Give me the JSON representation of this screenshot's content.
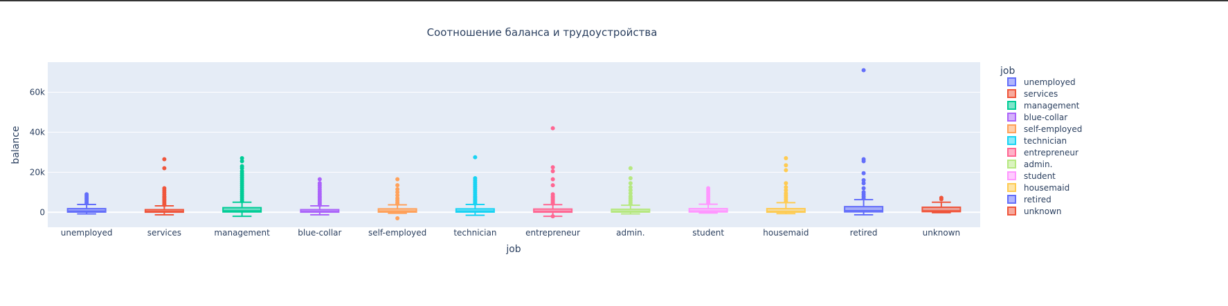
{
  "chart_data": {
    "type": "box",
    "title": "Соотношение баланса и трудоустройства",
    "xlabel": "job",
    "ylabel": "balance",
    "ylim": [
      -7500,
      75000
    ],
    "yticks": [
      0,
      20000,
      40000,
      60000
    ],
    "ytick_labels": [
      "0",
      "20k",
      "40k",
      "60k"
    ],
    "legend_title": "job",
    "legend_position": "right",
    "grid": true,
    "series": [
      {
        "name": "unemployed",
        "color": "#636efa",
        "q1": 100,
        "median": 550,
        "q3": 1800,
        "lower": -800,
        "upper": 3900,
        "outliers": [
          4500,
          5200,
          6000,
          6800,
          7500,
          8200,
          9000
        ]
      },
      {
        "name": "services",
        "color": "#ef553b",
        "q1": 50,
        "median": 400,
        "q3": 1300,
        "lower": -1300,
        "upper": 3200,
        "outliers": [
          3600,
          4200,
          5000,
          5800,
          6500,
          7300,
          8000,
          9000,
          10000,
          11000,
          12000,
          22000,
          26500
        ]
      },
      {
        "name": "management",
        "color": "#00cc96",
        "q1": 150,
        "median": 700,
        "q3": 2300,
        "lower": -2000,
        "upper": 5000,
        "outliers": [
          5500,
          6500,
          7500,
          8500,
          9500,
          10500,
          11500,
          12500,
          13500,
          14500,
          15500,
          16500,
          17500,
          18500,
          19500,
          20500,
          22000,
          23000,
          25500,
          27000
        ]
      },
      {
        "name": "blue-collar",
        "color": "#ab63fa",
        "q1": 60,
        "median": 400,
        "q3": 1300,
        "lower": -1300,
        "upper": 3200,
        "outliers": [
          3600,
          4300,
          5000,
          5800,
          6500,
          7300,
          8000,
          8800,
          9600,
          10500,
          11500,
          12500,
          13500,
          14500,
          16500
        ]
      },
      {
        "name": "self-employed",
        "color": "#ffa15a",
        "q1": 100,
        "median": 550,
        "q3": 1700,
        "lower": -500,
        "upper": 3700,
        "outliers": [
          4200,
          5000,
          6000,
          7000,
          8500,
          10000,
          11500,
          13500,
          16500,
          -3000
        ]
      },
      {
        "name": "technician",
        "color": "#19d3f3",
        "q1": 100,
        "median": 550,
        "q3": 1700,
        "lower": -1500,
        "upper": 3900,
        "outliers": [
          4300,
          5000,
          5800,
          6500,
          7300,
          8000,
          9000,
          10000,
          11000,
          12000,
          13000,
          14000,
          15000,
          16000,
          17000,
          27500
        ]
      },
      {
        "name": "entrepreneur",
        "color": "#ff6692",
        "q1": 50,
        "median": 400,
        "q3": 1600,
        "lower": -2000,
        "upper": 3800,
        "outliers": [
          4300,
          5000,
          5800,
          6500,
          7300,
          8000,
          9000,
          13500,
          16500,
          20500,
          22500,
          42000,
          -2000
        ]
      },
      {
        "name": "admin.",
        "color": "#b6e880",
        "q1": 100,
        "median": 500,
        "q3": 1500,
        "lower": -800,
        "upper": 3500,
        "outliers": [
          4000,
          5000,
          6000,
          7000,
          8000,
          9500,
          11000,
          12500,
          14500,
          17000,
          22000
        ]
      },
      {
        "name": "student",
        "color": "#ff97ff",
        "q1": 150,
        "median": 600,
        "q3": 1800,
        "lower": -400,
        "upper": 4000,
        "outliers": [
          4500,
          5300,
          6000,
          7000,
          8000,
          9000,
          10000,
          11000,
          12000
        ]
      },
      {
        "name": "housemaid",
        "color": "#fecb52",
        "q1": 50,
        "median": 400,
        "q3": 1800,
        "lower": -700,
        "upper": 4800,
        "outliers": [
          5500,
          6500,
          7500,
          8500,
          9500,
          11000,
          12500,
          14500,
          21000,
          23500,
          27000
        ]
      },
      {
        "name": "retired",
        "color": "#636efa",
        "q1": 200,
        "median": 800,
        "q3": 2800,
        "lower": -1300,
        "upper": 6300,
        "outliers": [
          7000,
          8000,
          9000,
          10000,
          12000,
          14500,
          16000,
          19500,
          25500,
          26500,
          71000
        ]
      },
      {
        "name": "unknown",
        "color": "#ef553b",
        "q1": 300,
        "median": 700,
        "q3": 2500,
        "lower": -200,
        "upper": 5000,
        "outliers": [
          6500,
          7200
        ]
      }
    ]
  }
}
